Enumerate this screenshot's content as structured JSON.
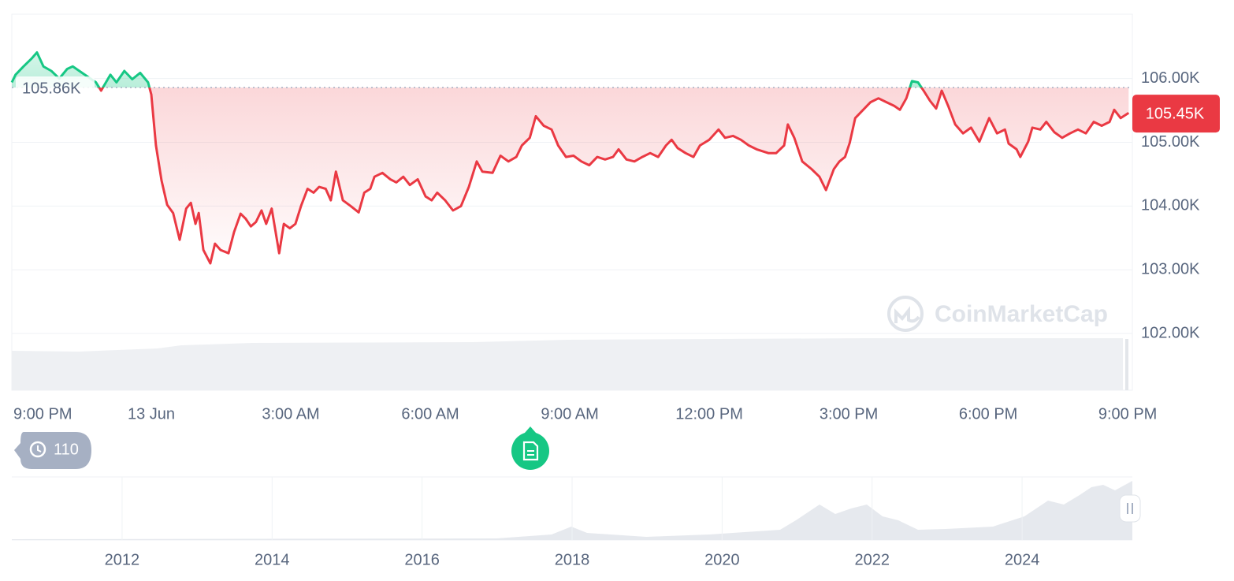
{
  "chart_data": {
    "type": "line",
    "watermark": "CoinMarketCap",
    "xlim": [
      -3,
      21.1
    ],
    "xticks": [
      {
        "value": -3,
        "label": "9:00 PM"
      },
      {
        "value": 0,
        "label": "13 Jun"
      },
      {
        "value": 3,
        "label": "3:00 AM"
      },
      {
        "value": 6,
        "label": "6:00 AM"
      },
      {
        "value": 9,
        "label": "9:00 AM"
      },
      {
        "value": 12,
        "label": "12:00 PM"
      },
      {
        "value": 15,
        "label": "3:00 PM"
      },
      {
        "value": 18,
        "label": "6:00 PM"
      },
      {
        "value": 21,
        "label": "9:00 PM"
      }
    ],
    "ylim": [
      101110,
      107010
    ],
    "yticks": [
      {
        "value": 102000,
        "label": "102.00K"
      },
      {
        "value": 103000,
        "label": "103.00K"
      },
      {
        "value": 104000,
        "label": "104.00K"
      },
      {
        "value": 105000,
        "label": "105.00K"
      },
      {
        "value": 106000,
        "label": "106.00K"
      }
    ],
    "grid": true,
    "baseline": {
      "value": 105860,
      "label": "105.86K",
      "color_above": "#16c784",
      "color_below": "#ea3943"
    },
    "current": {
      "value": 105450,
      "label": "105.45K",
      "color": "#ea3943"
    },
    "x": [
      -3.0,
      -2.92,
      -2.75,
      -2.58,
      -2.46,
      -2.32,
      -2.15,
      -1.98,
      -1.81,
      -1.69,
      -1.19,
      -1.08,
      -0.88,
      -0.75,
      -0.58,
      -0.41,
      -0.24,
      -0.07,
      0,
      0.1,
      0.22,
      0.34,
      0.47,
      0.61,
      0.75,
      0.85,
      0.95,
      1.02,
      1.12,
      1.27,
      1.37,
      1.49,
      1.66,
      1.78,
      1.92,
      2.03,
      2.14,
      2.25,
      2.37,
      2.47,
      2.59,
      2.75,
      2.85,
      2.98,
      3.1,
      3.22,
      3.36,
      3.49,
      3.61,
      3.75,
      3.86,
      3.97,
      4.12,
      4.29,
      4.46,
      4.58,
      4.71,
      4.8,
      4.97,
      5.14,
      5.27,
      5.42,
      5.56,
      5.73,
      5.9,
      6.03,
      6.15,
      6.32,
      6.49,
      6.66,
      6.83,
      7.0,
      7.12,
      7.34,
      7.51,
      7.68,
      7.85,
      7.97,
      8.14,
      8.27,
      8.44,
      8.61,
      8.75,
      8.92,
      9.08,
      9.25,
      9.42,
      9.59,
      9.76,
      9.93,
      10.05,
      10.22,
      10.39,
      10.56,
      10.73,
      10.9,
      11.07,
      11.19,
      11.32,
      11.49,
      11.66,
      11.8,
      12.0,
      12.2,
      12.34,
      12.51,
      12.68,
      12.85,
      13.02,
      13.27,
      13.44,
      13.61,
      13.69,
      13.83,
      14.0,
      14.2,
      14.37,
      14.51,
      14.68,
      14.8,
      14.92,
      15.02,
      15.14,
      15.31,
      15.47,
      15.64,
      15.81,
      15.98,
      16.1,
      16.24,
      16.36,
      16.49,
      16.61,
      16.75,
      16.88,
      17.0,
      17.14,
      17.29,
      17.46,
      17.63,
      17.81,
      18.02,
      18.19,
      18.36,
      18.44,
      18.61,
      18.69,
      18.86,
      18.95,
      19.12,
      19.25,
      19.42,
      19.59,
      19.76,
      19.93,
      20.1,
      20.27,
      20.44,
      20.61,
      20.71,
      20.85,
      21.02
    ],
    "values": [
      105940,
      106060,
      106190,
      106310,
      106410,
      106190,
      106120,
      106000,
      106150,
      106190,
      105940,
      105810,
      106060,
      105940,
      106120,
      105990,
      106090,
      105940,
      105750,
      104950,
      104400,
      104020,
      103890,
      103470,
      103960,
      104050,
      103720,
      103890,
      103310,
      103100,
      103410,
      103310,
      103260,
      103590,
      103880,
      103800,
      103680,
      103750,
      103930,
      103720,
      103960,
      103260,
      103720,
      103650,
      103720,
      104000,
      104270,
      104210,
      104300,
      104270,
      104090,
      104540,
      104090,
      104000,
      103900,
      104210,
      104270,
      104460,
      104520,
      104420,
      104370,
      104460,
      104330,
      104420,
      104150,
      104090,
      104210,
      104090,
      103930,
      104000,
      104300,
      104700,
      104540,
      104520,
      104790,
      104700,
      104770,
      104950,
      105070,
      105410,
      105260,
      105200,
      104950,
      104770,
      104790,
      104700,
      104640,
      104770,
      104730,
      104770,
      104890,
      104730,
      104700,
      104770,
      104830,
      104770,
      104950,
      105040,
      104910,
      104830,
      104770,
      104950,
      105040,
      105200,
      105070,
      105100,
      105040,
      104950,
      104890,
      104830,
      104830,
      104950,
      105280,
      105070,
      104700,
      104580,
      104460,
      104250,
      104580,
      104700,
      104770,
      104990,
      105380,
      105510,
      105630,
      105690,
      105630,
      105570,
      105510,
      105690,
      105960,
      105940,
      105810,
      105650,
      105530,
      105810,
      105570,
      105280,
      105140,
      105230,
      105010,
      105380,
      105140,
      105200,
      104980,
      104890,
      104770,
      105010,
      105230,
      105200,
      105320,
      105160,
      105070,
      105140,
      105200,
      105140,
      105320,
      105260,
      105320,
      105510,
      105380,
      105460
    ]
  },
  "controls": {
    "history_count": 110
  },
  "navigator": {
    "xlim": [
      2010.53,
      2025.47
    ],
    "xticks": [
      2012,
      2014,
      2016,
      2018,
      2020,
      2022,
      2024
    ]
  }
}
